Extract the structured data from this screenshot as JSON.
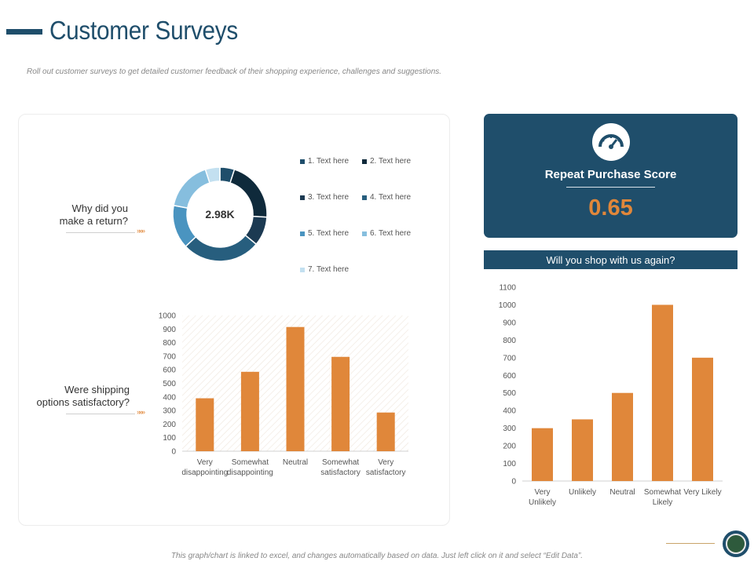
{
  "page": {
    "title": "Customer Surveys",
    "subtitle": "Roll out customer surveys to get detailed customer feedback of their shopping experience, challenges and suggestions.",
    "footer": "This graph/chart is linked to excel, and changes automatically based on data. Just left click on it and select “Edit Data”."
  },
  "questions": {
    "q1_line1": "Why did you",
    "q1_line2": "make a return?",
    "q2_line1": "Were shipping",
    "q2_line2": "options satisfactory?",
    "arrow": "»»»"
  },
  "score_card": {
    "label": "Repeat Purchase Score",
    "value": "0.65",
    "icon": "speedometer-icon"
  },
  "q3": {
    "label": "Will you shop with us again?"
  },
  "colors": {
    "navy": "#1f4e6b",
    "orange": "#e0873a",
    "donut": [
      "#1f4e6b",
      "#0f2a3b",
      "#1c3a52",
      "#275e7e",
      "#4a94c0",
      "#86bede",
      "#c3e0f0"
    ]
  },
  "chart_data": [
    {
      "type": "pie",
      "title": "Why did you make a return?",
      "center_label": "2.98K",
      "categories": [
        "1. Text here",
        "2. Text here",
        "3. Text here",
        "4. Text here",
        "5. Text here",
        "6. Text here",
        "7. Text here"
      ],
      "values": [
        5,
        21,
        10,
        27,
        15,
        17,
        5
      ]
    },
    {
      "type": "bar",
      "title": "Were shipping options satisfactory?",
      "categories": [
        [
          "Very",
          "disappointing"
        ],
        [
          "Somewhat",
          "disappointing"
        ],
        [
          "Neutral"
        ],
        [
          "Somewhat",
          "satisfactory"
        ],
        [
          "Very",
          "satisfactory"
        ]
      ],
      "values": [
        390,
        585,
        915,
        695,
        285
      ],
      "ylim": [
        0,
        1000
      ],
      "yticks": [
        0,
        100,
        200,
        300,
        400,
        500,
        600,
        700,
        800,
        900,
        1000
      ]
    },
    {
      "type": "bar",
      "title": "Will you shop with us again?",
      "categories": [
        [
          "Very",
          "Unlikely"
        ],
        [
          "Unlikely"
        ],
        [
          "Neutral"
        ],
        [
          "Somewhat",
          "Likely"
        ],
        [
          "Very Likely"
        ]
      ],
      "values": [
        300,
        350,
        500,
        1000,
        700
      ],
      "ylim": [
        0,
        1100
      ],
      "yticks": [
        0,
        100,
        200,
        300,
        400,
        500,
        600,
        700,
        800,
        900,
        1000,
        1100
      ]
    }
  ]
}
